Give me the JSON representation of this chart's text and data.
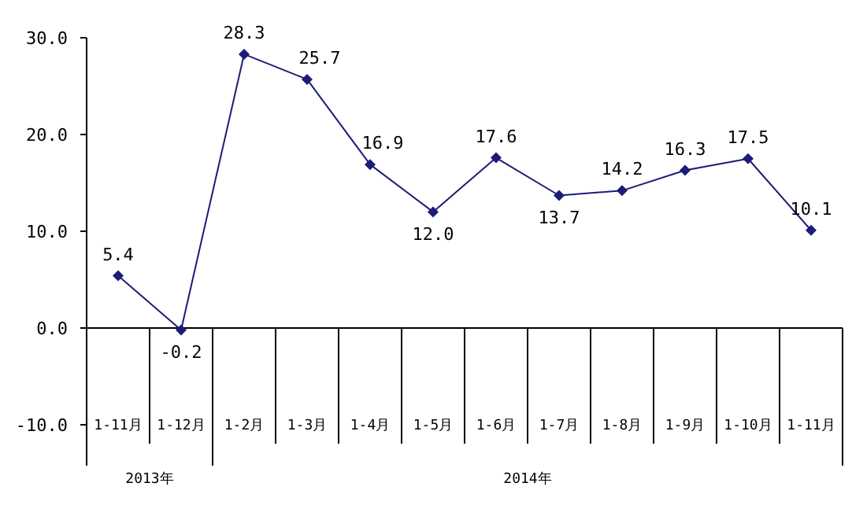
{
  "chart_data": {
    "type": "line",
    "categories": [
      "1-11月",
      "1-12月",
      "1-2月",
      "1-3月",
      "1-4月",
      "1-5月",
      "1-6月",
      "1-7月",
      "1-8月",
      "1-9月",
      "1-10月",
      "1-11月"
    ],
    "series": [
      {
        "color": "#1c1c78",
        "values": [
          5.4,
          -0.2,
          28.3,
          25.7,
          16.9,
          12.0,
          17.6,
          13.7,
          14.2,
          16.3,
          17.5,
          10.1
        ]
      }
    ],
    "ylim": [
      -10,
      30
    ],
    "yticks": [
      {
        "value": -10,
        "label": "-10.0"
      },
      {
        "value": 0,
        "label": "0.0"
      },
      {
        "value": 10,
        "label": "10.0"
      },
      {
        "value": 20,
        "label": "20.0"
      },
      {
        "value": 30,
        "label": "30.0"
      }
    ],
    "value_labels": [
      "5.4",
      "-0.2",
      "28.3",
      "25.7",
      "16.9",
      "12.0",
      "17.6",
      "13.7",
      "14.2",
      "16.3",
      "17.5",
      "10.1"
    ],
    "marker": "diamond",
    "line_style": "solid",
    "annotations": [
      "2013年",
      "2014年"
    ]
  }
}
